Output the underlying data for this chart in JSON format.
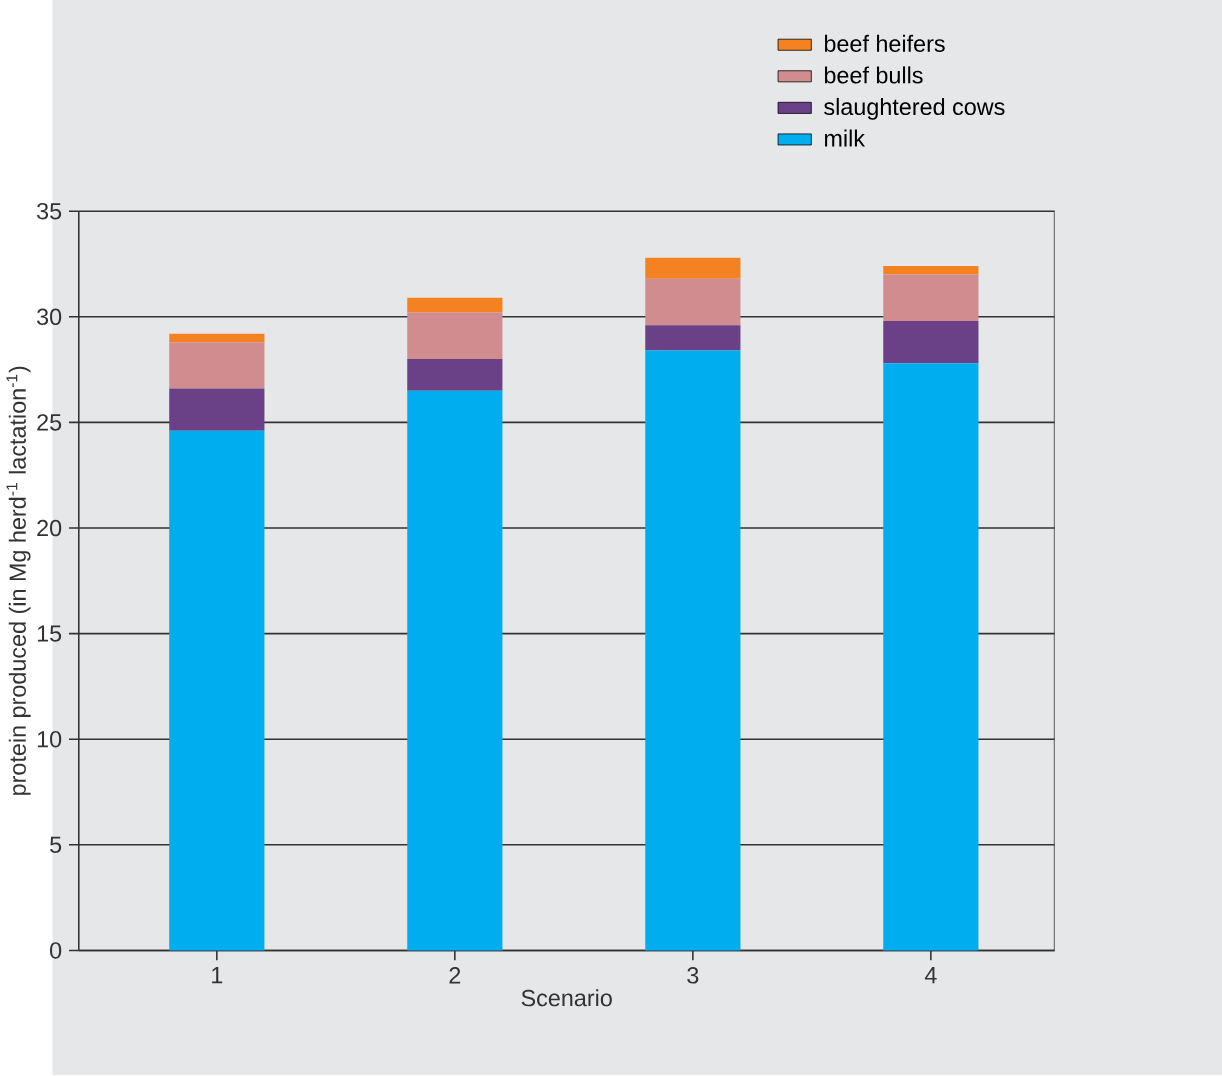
{
  "chart_data": {
    "type": "bar",
    "stacked": true,
    "xlabel": "Scenario",
    "ylabel": "protein produced (in Mg herd$^{-1}$ lactation$^{-1}$)",
    "categories": [
      "1",
      "2",
      "3",
      "4"
    ],
    "series": [
      {
        "name": "milk",
        "color": "#00aeef",
        "values": [
          24.6,
          26.5,
          28.4,
          27.8
        ]
      },
      {
        "name": "slaughtered cows",
        "color": "#6a4187",
        "values": [
          2.0,
          1.5,
          1.2,
          2.0
        ]
      },
      {
        "name": "beef bulls",
        "color": "#d08c8f",
        "values": [
          2.2,
          2.2,
          2.2,
          2.2
        ]
      },
      {
        "name": "beef heifers",
        "color": "#f58220",
        "values": [
          0.4,
          0.7,
          1.0,
          0.4
        ]
      }
    ],
    "ylim": [
      0,
      35
    ],
    "yticks": [
      0,
      5,
      10,
      15,
      20,
      25,
      30,
      35
    ],
    "grid": "y",
    "legend": "top right"
  }
}
